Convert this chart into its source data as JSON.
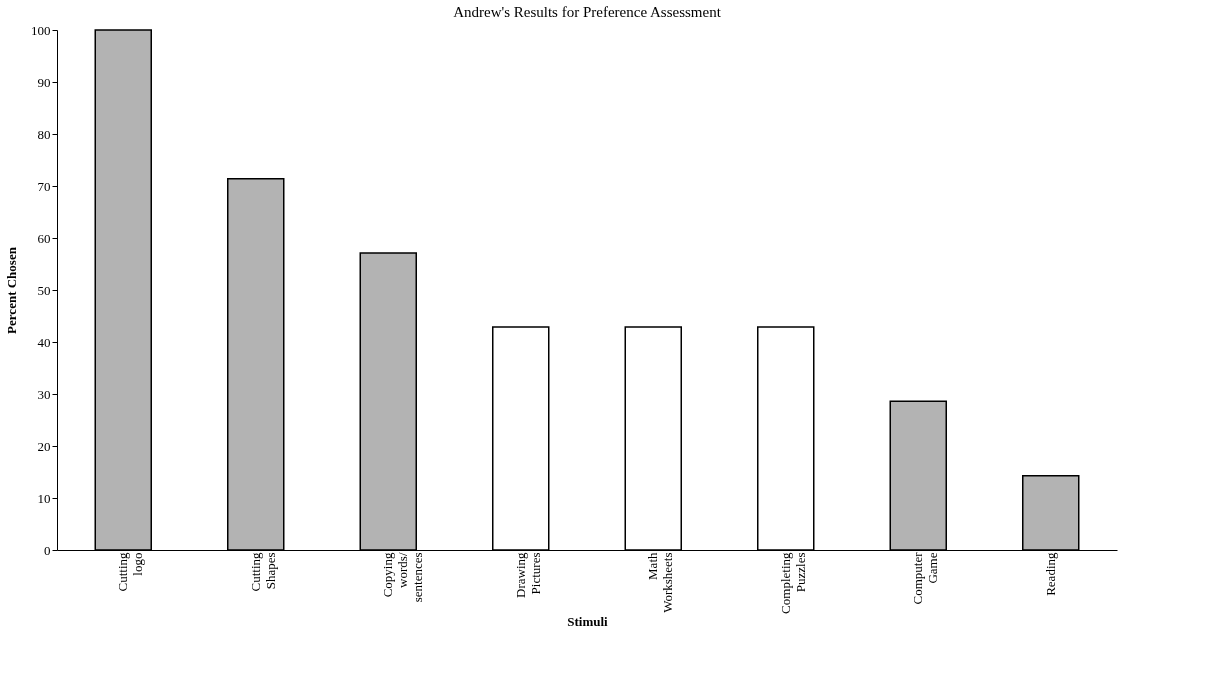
{
  "chart_data": {
    "type": "bar",
    "title": "Andrew's Results for Preference Assessment",
    "xlabel": "Stimuli",
    "ylabel": "Percent Chosen",
    "categories": [
      "Cutting logo",
      "Cutting Shapes",
      "Copying words/ sentences",
      "Drawing Pictures",
      "Math Worksheets",
      "Completing Puzzles",
      "Computer Game",
      "Reading"
    ],
    "values": [
      100,
      71.4,
      57.1,
      42.9,
      42.9,
      42.9,
      28.6,
      14.3
    ],
    "colors": [
      "#b3b3b3",
      "#b3b3b3",
      "#b3b3b3",
      "#ffffff",
      "#ffffff",
      "#ffffff",
      "#b3b3b3",
      "#b3b3b3"
    ],
    "ylim": [
      0,
      100
    ],
    "yticks": [
      0,
      10,
      20,
      30,
      40,
      50,
      60,
      70,
      80,
      90,
      100
    ],
    "grid": false
  }
}
